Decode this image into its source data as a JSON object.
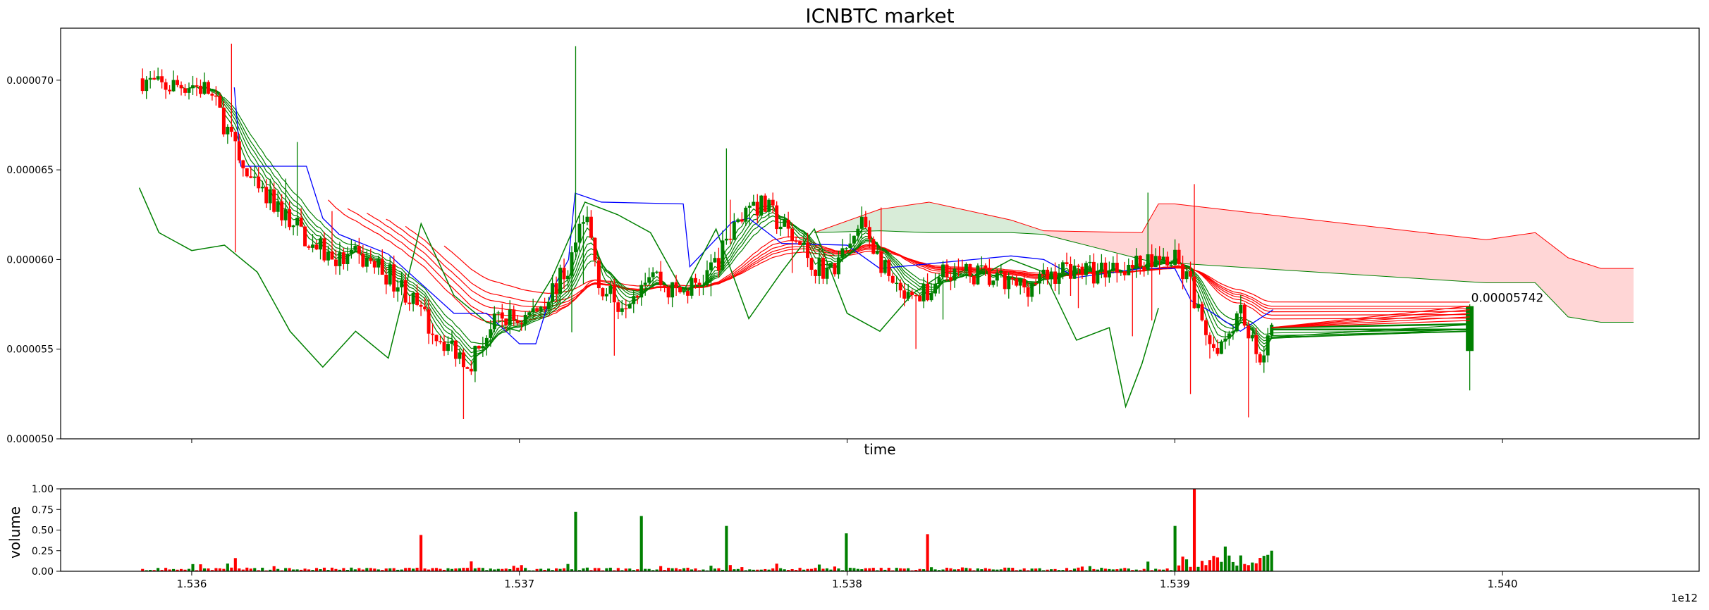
{
  "chart_data": [
    {
      "type": "candlestick",
      "title": "ICNBTC market",
      "xlabel": "time",
      "ylabel": "",
      "x_scale_note": "1e12",
      "xlim": [
        1.5356,
        1.5406
      ],
      "ylim": [
        5e-05,
        7.29e-05
      ],
      "x_ticks": [
        1.536,
        1.537,
        1.538,
        1.539,
        1.54
      ],
      "x_tick_labels": [
        "1.536",
        "1.537",
        "1.538",
        "1.539",
        "1.540"
      ],
      "y_ticks": [
        5e-05,
        5.5e-05,
        6e-05,
        6.5e-05,
        7e-05
      ],
      "y_tick_labels": [
        "0.000050",
        "0.000055",
        "0.000060",
        "0.000065",
        "0.000070"
      ],
      "last_price_label": "0.00005742",
      "colors": {
        "up": "#008000",
        "down": "#ff0000",
        "blue_line": "#0000ff",
        "cloud_red": "#ffd6d6",
        "cloud_green": "#d8ecd8"
      },
      "price_anchors": {
        "x": [
          1.53585,
          1.5359,
          1.53595,
          1.536,
          1.53605,
          1.5361,
          1.53615,
          1.5362,
          1.53625,
          1.5363,
          1.53635,
          1.5364,
          1.53645,
          1.5365,
          1.53655,
          1.5366,
          1.53665,
          1.5367,
          1.53675,
          1.5368,
          1.53685,
          1.5369,
          1.53695,
          1.537,
          1.53705,
          1.5371,
          1.53715,
          1.5372,
          1.53725,
          1.5373,
          1.53735,
          1.5374,
          1.53745,
          1.5375,
          1.53755,
          1.5376,
          1.53765,
          1.5377,
          1.53775,
          1.5378,
          1.53785,
          1.5379,
          1.53795,
          1.538,
          1.53805,
          1.5381,
          1.53815,
          1.5382,
          1.53825,
          1.5383,
          1.53835,
          1.5384,
          1.53845,
          1.5385,
          1.53855,
          1.5386,
          1.53865,
          1.5387,
          1.53875,
          1.5388,
          1.53885,
          1.5389,
          1.53895,
          1.539,
          1.53905,
          1.5391,
          1.53915,
          1.5392,
          1.53925,
          1.5393,
          1.5399
        ],
        "price": [
          7.01e-05,
          6.96e-05,
          6.97e-05,
          6.98e-05,
          6.94e-05,
          6.76e-05,
          6.52e-05,
          6.37e-05,
          6.31e-05,
          6.22e-05,
          6.12e-05,
          6.04e-05,
          5.99e-05,
          6.01e-05,
          5.98e-05,
          5.92e-05,
          5.83e-05,
          5.69e-05,
          5.58e-05,
          5.5e-05,
          5.43e-05,
          5.59e-05,
          5.68e-05,
          5.66e-05,
          5.72e-05,
          5.83e-05,
          5.95e-05,
          6.28e-05,
          5.83e-05,
          5.76e-05,
          5.83e-05,
          5.96e-05,
          5.83e-05,
          5.82e-05,
          5.87e-05,
          5.98e-05,
          6.15e-05,
          6.31e-05,
          6.29e-05,
          6.19e-05,
          6.09e-05,
          5.98e-05,
          5.93e-05,
          6.05e-05,
          6.21e-05,
          5.99e-05,
          5.81e-05,
          5.75e-05,
          5.82e-05,
          5.97e-05,
          5.91e-05,
          5.92e-05,
          5.88e-05,
          5.85e-05,
          5.86e-05,
          5.89e-05,
          5.94e-05,
          5.96e-05,
          5.92e-05,
          5.96e-05,
          5.98e-05,
          5.98e-05,
          6e-05,
          5.99e-05,
          5.85e-05,
          5.5e-05,
          5.56e-05,
          5.75e-05,
          5.45e-05,
          5.6e-05,
          5.49e-05
        ]
      },
      "blue_line": {
        "x": [
          1.53613,
          1.53615,
          1.5362,
          1.53635,
          1.5364,
          1.53645,
          1.5366,
          1.5368,
          1.5369,
          1.537,
          1.53705,
          1.5371,
          1.53715,
          1.53717,
          1.53725,
          1.5375,
          1.53752,
          1.53765,
          1.5377,
          1.5378,
          1.538,
          1.5381,
          1.5385,
          1.5386,
          1.5387,
          1.5389,
          1.539,
          1.53905,
          1.5391,
          1.5392,
          1.5393
        ],
        "price": [
          6.96e-05,
          6.52e-05,
          6.52e-05,
          6.52e-05,
          6.23e-05,
          6.14e-05,
          6.03e-05,
          5.7e-05,
          5.7e-05,
          5.53e-05,
          5.53e-05,
          5.83e-05,
          6e-05,
          6.37e-05,
          6.32e-05,
          6.31e-05,
          5.96e-05,
          6.21e-05,
          6.23e-05,
          6.09e-05,
          6.08e-05,
          5.95e-05,
          6.02e-05,
          6e-05,
          5.9e-05,
          5.95e-05,
          5.95e-05,
          5.77e-05,
          5.72e-05,
          5.6e-05,
          5.72e-05
        ]
      },
      "green_lag_line": {
        "x": [
          1.53584,
          1.5359,
          1.536,
          1.5361,
          1.5362,
          1.5363,
          1.5364,
          1.5365,
          1.5366,
          1.5367,
          1.5368,
          1.5369,
          1.537,
          1.5371,
          1.5372,
          1.5373,
          1.5374,
          1.5375,
          1.5376,
          1.5377,
          1.5378,
          1.5379,
          1.538,
          1.5381,
          1.5382,
          1.5383,
          1.5384,
          1.5385,
          1.5386,
          1.5387,
          1.5388,
          1.53885,
          1.5389,
          1.53895
        ],
        "price": [
          6.4e-05,
          6.15e-05,
          6.05e-05,
          6.08e-05,
          5.93e-05,
          5.6e-05,
          5.4e-05,
          5.6e-05,
          5.45e-05,
          6.2e-05,
          5.8e-05,
          5.65e-05,
          5.6e-05,
          5.9e-05,
          6.32e-05,
          6.25e-05,
          6.15e-05,
          5.82e-05,
          6.17e-05,
          5.67e-05,
          5.93e-05,
          6.17e-05,
          5.7e-05,
          5.6e-05,
          5.81e-05,
          5.93e-05,
          5.9e-05,
          6e-05,
          5.93e-05,
          5.55e-05,
          5.62e-05,
          5.18e-05,
          5.42e-05,
          5.73e-05
        ]
      },
      "cloud": {
        "x": [
          1.5379,
          1.5381,
          1.53825,
          1.5383,
          1.5385,
          1.5386,
          1.5389,
          1.53895,
          1.539,
          1.53995,
          1.5401,
          1.5402,
          1.5403,
          1.5404
        ],
        "upper": [
          6.15e-05,
          6.28e-05,
          6.32e-05,
          6.3e-05,
          6.22e-05,
          6.16e-05,
          6.15e-05,
          6.31e-05,
          6.31e-05,
          6.11e-05,
          6.15e-05,
          6.01e-05,
          5.95e-05,
          5.95e-05
        ],
        "lower": [
          6.15e-05,
          6.16e-05,
          6.15e-05,
          6.15e-05,
          6.15e-05,
          6.14e-05,
          6e-05,
          5.98e-05,
          5.98e-05,
          5.87e-05,
          5.87e-05,
          5.68e-05,
          5.65e-05,
          5.65e-05
        ]
      },
      "volume_panel": {
        "ylabel": "volume",
        "ylim": [
          0,
          1.0
        ],
        "y_ticks": [
          0,
          0.25,
          0.5,
          0.75,
          1.0
        ],
        "y_tick_labels": [
          "0.00",
          "0.25",
          "0.50",
          "0.75",
          "1.00"
        ],
        "spikes": [
          {
            "x": 1.53613,
            "v": 0.16,
            "dir": "down"
          },
          {
            "x": 1.5367,
            "v": 0.44,
            "dir": "up"
          },
          {
            "x": 1.53685,
            "v": 0.12,
            "dir": "down"
          },
          {
            "x": 1.53717,
            "v": 0.72,
            "dir": "up"
          },
          {
            "x": 1.53737,
            "v": 0.67,
            "dir": "up"
          },
          {
            "x": 1.53763,
            "v": 0.55,
            "dir": "up"
          },
          {
            "x": 1.538,
            "v": 0.46,
            "dir": "up"
          },
          {
            "x": 1.53825,
            "v": 0.45,
            "dir": "up"
          },
          {
            "x": 1.539,
            "v": 0.55,
            "dir": "down"
          },
          {
            "x": 1.53906,
            "v": 1.0,
            "dir": "down"
          },
          {
            "x": 1.53915,
            "v": 0.3,
            "dir": "up"
          },
          {
            "x": 1.5393,
            "v": 0.25,
            "dir": "up"
          }
        ],
        "active_range": [
          1.53585,
          1.5393
        ]
      }
    }
  ]
}
